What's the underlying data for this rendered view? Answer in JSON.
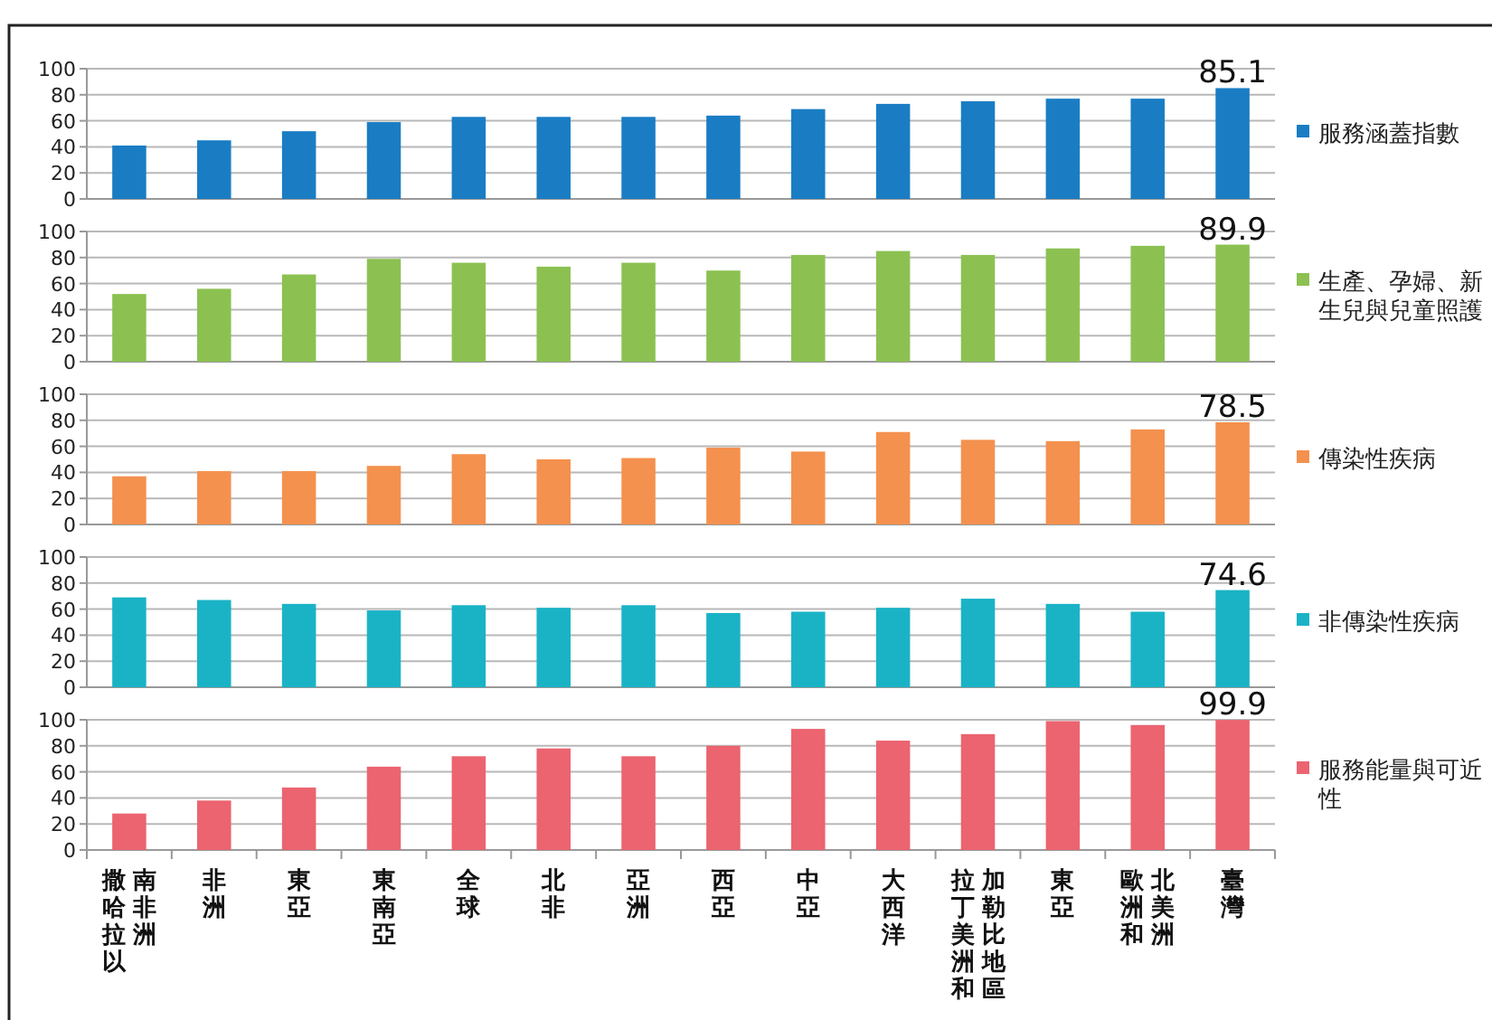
{
  "chart_data": [
    {
      "type": "bar",
      "categories": [
        "撒哈拉以南非洲",
        "非洲",
        "東亞",
        "東南亞",
        "全球",
        "北非",
        "亞洲",
        "西亞",
        "中亞",
        "大西洋",
        "拉丁美洲和加勒比地區",
        "東亞",
        "歐洲和北美洲",
        "臺灣"
      ],
      "tick_labels": "y",
      "ylim": [
        0,
        100
      ],
      "yticks": [
        0,
        20,
        40,
        60,
        80,
        100
      ],
      "grid": "y",
      "legend": "right",
      "series": [
        {
          "name": "服務涵蓋指數",
          "color": "#1a7dc4",
          "values": [
            41,
            45,
            52,
            59,
            63,
            63,
            63,
            64,
            69,
            73,
            75,
            77,
            77,
            85.1
          ],
          "value_labels": [
            null,
            null,
            null,
            null,
            null,
            null,
            null,
            null,
            null,
            null,
            null,
            null,
            null,
            "85.1"
          ]
        }
      ]
    },
    {
      "type": "bar",
      "categories": [
        "撒哈拉以南非洲",
        "非洲",
        "東亞",
        "東南亞",
        "全球",
        "北非",
        "亞洲",
        "西亞",
        "中亞",
        "大西洋",
        "拉丁美洲和加勒比地區",
        "東亞",
        "歐洲和北美洲",
        "臺灣"
      ],
      "tick_labels": "y",
      "ylim": [
        0,
        100
      ],
      "yticks": [
        0,
        20,
        40,
        60,
        80,
        100
      ],
      "grid": "y",
      "legend": "right",
      "series": [
        {
          "name": "生產、孕婦、新生兒與兒童照護",
          "color": "#8cc152",
          "values": [
            52,
            56,
            67,
            79,
            76,
            73,
            76,
            70,
            82,
            85,
            82,
            87,
            89,
            89.9
          ],
          "value_labels": [
            null,
            null,
            null,
            null,
            null,
            null,
            null,
            null,
            null,
            null,
            null,
            null,
            null,
            "89.9"
          ]
        }
      ]
    },
    {
      "type": "bar",
      "categories": [
        "撒哈拉以南非洲",
        "非洲",
        "東亞",
        "東南亞",
        "全球",
        "北非",
        "亞洲",
        "西亞",
        "中亞",
        "大西洋",
        "拉丁美洲和加勒比地區",
        "東亞",
        "歐洲和北美洲",
        "臺灣"
      ],
      "tick_labels": "y",
      "ylim": [
        0,
        100
      ],
      "yticks": [
        0,
        20,
        40,
        60,
        80,
        100
      ],
      "grid": "y",
      "legend": "right",
      "series": [
        {
          "name": "傳染性疾病",
          "color": "#f4914e",
          "values": [
            37,
            41,
            41,
            45,
            54,
            50,
            51,
            59,
            56,
            71,
            65,
            64,
            73,
            78.5
          ],
          "value_labels": [
            null,
            null,
            null,
            null,
            null,
            null,
            null,
            null,
            null,
            null,
            null,
            null,
            null,
            "78.5"
          ]
        }
      ]
    },
    {
      "type": "bar",
      "categories": [
        "撒哈拉以南非洲",
        "非洲",
        "東亞",
        "東南亞",
        "全球",
        "北非",
        "亞洲",
        "西亞",
        "中亞",
        "大西洋",
        "拉丁美洲和加勒比地區",
        "東亞",
        "歐洲和北美洲",
        "臺灣"
      ],
      "tick_labels": "y",
      "ylim": [
        0,
        100
      ],
      "yticks": [
        0,
        20,
        40,
        60,
        80,
        100
      ],
      "grid": "y",
      "legend": "right",
      "series": [
        {
          "name": "非傳染性疾病",
          "color": "#1ab3c6",
          "values": [
            69,
            67,
            64,
            59,
            63,
            61,
            63,
            57,
            58,
            61,
            68,
            64,
            58,
            74.6
          ],
          "value_labels": [
            null,
            null,
            null,
            null,
            null,
            null,
            null,
            null,
            null,
            null,
            null,
            null,
            null,
            "74.6"
          ]
        }
      ]
    },
    {
      "type": "bar",
      "categories": [
        "撒哈拉以南非洲",
        "非洲",
        "東亞",
        "東南亞",
        "全球",
        "北非",
        "亞洲",
        "西亞",
        "中亞",
        "大西洋",
        "拉丁美洲和加勒比地區",
        "東亞",
        "歐洲和北美洲",
        "臺灣"
      ],
      "ylim": [
        0,
        100
      ],
      "yticks": [
        0,
        20,
        40,
        60,
        80,
        100
      ],
      "grid": "y",
      "legend": "right",
      "series": [
        {
          "name": "服務能量與可近性",
          "color": "#eb6470",
          "values": [
            28,
            38,
            48,
            64,
            72,
            78,
            72,
            80,
            93,
            84,
            89,
            99,
            96,
            99.9
          ],
          "value_labels": [
            null,
            null,
            null,
            null,
            null,
            null,
            null,
            null,
            null,
            null,
            null,
            null,
            null,
            "99.9"
          ]
        }
      ]
    }
  ]
}
